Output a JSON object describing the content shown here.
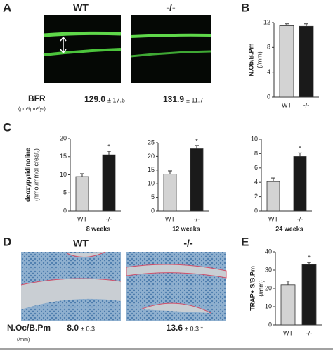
{
  "panels": {
    "a": "A",
    "b": "B",
    "c": "C",
    "d": "D",
    "e": "E"
  },
  "panel_a": {
    "wt": "WT",
    "ko": "-/-",
    "measure": "BFR",
    "unit": "(µm³/µm²/yr)",
    "wt_value": "129.0",
    "wt_error": "± 17.5",
    "ko_value": "131.9",
    "ko_error": "± 11.7"
  },
  "panel_d": {
    "wt": "WT",
    "ko": "-/-",
    "measure": "N.Oc/B.Pm",
    "unit": "(/mm)",
    "wt_value": "8.0",
    "wt_error": "± 0.3",
    "ko_value": "13.6",
    "ko_error": "± 0.3 *"
  },
  "chart_data": [
    {
      "type": "bar",
      "ylabel": "N.Ob/B.Pm",
      "ylabel_unit": "(/mm)",
      "categories": [
        "WT",
        "-/-"
      ],
      "values": [
        11.5,
        11.4
      ],
      "errors": [
        0.3,
        0.4
      ],
      "colors": [
        "#d3d3d3",
        "#1a1a1a"
      ],
      "ylim": [
        0,
        12
      ],
      "yticks": [
        0,
        4,
        8,
        12
      ]
    },
    {
      "type": "bar",
      "ylabel": "deoxypyridinoline",
      "ylabel_unit": "(nmol/mmol creat.)",
      "caption": "8 weeks",
      "categories": [
        "WT",
        "-/-"
      ],
      "values": [
        9.5,
        15.5
      ],
      "errors": [
        0.8,
        1.0
      ],
      "annotation": "*",
      "colors": [
        "#d3d3d3",
        "#1a1a1a"
      ],
      "ylim": [
        0,
        20
      ],
      "yticks": [
        0,
        5,
        10,
        15,
        20
      ]
    },
    {
      "type": "bar",
      "caption": "12 weeks",
      "categories": [
        "WT",
        "-/-"
      ],
      "values": [
        13.5,
        22.8
      ],
      "errors": [
        1.2,
        1.2
      ],
      "annotation": "*",
      "colors": [
        "#d3d3d3",
        "#1a1a1a"
      ],
      "ylim": [
        0,
        25
      ],
      "yticks": [
        0,
        5,
        10,
        15,
        20,
        25
      ]
    },
    {
      "type": "bar",
      "caption": "24 weeks",
      "categories": [
        "WT",
        "-/-"
      ],
      "values": [
        4.1,
        7.6
      ],
      "errors": [
        0.5,
        0.5
      ],
      "annotation": "*",
      "colors": [
        "#d3d3d3",
        "#1a1a1a"
      ],
      "ylim": [
        0,
        10
      ],
      "yticks": [
        0,
        2,
        4,
        6,
        8,
        10
      ]
    },
    {
      "type": "bar",
      "ylabel": "TRAP+ S/B.Pm",
      "ylabel_unit": "(/mm)",
      "categories": [
        "WT",
        "-/-"
      ],
      "values": [
        22,
        33
      ],
      "errors": [
        2,
        1.2
      ],
      "annotation": "*",
      "colors": [
        "#d3d3d3",
        "#1a1a1a"
      ],
      "ylim": [
        0,
        40
      ],
      "yticks": [
        0,
        10,
        20,
        30,
        40
      ]
    }
  ]
}
